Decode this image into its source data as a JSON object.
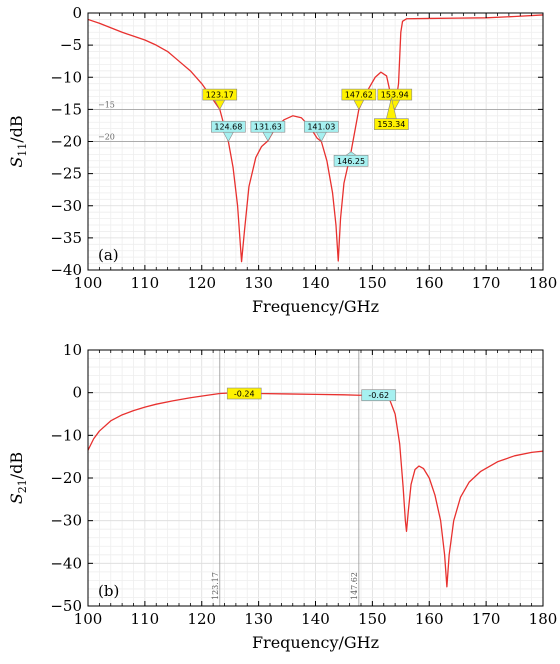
{
  "chart_data": [
    {
      "type": "line",
      "panel_label": "(a)",
      "xlabel": "Frequency/GHz",
      "ylabel": "S11/dB",
      "ylabel_main": "S",
      "ylabel_sub": "11",
      "ylabel_unit": "/dB",
      "xlim": [
        100,
        180
      ],
      "ylim": [
        -40,
        0
      ],
      "xticks": [
        100,
        110,
        120,
        130,
        140,
        150,
        160,
        170,
        180
      ],
      "yticks": [
        0,
        -5,
        -10,
        -15,
        -20,
        -25,
        -30,
        -35,
        -40
      ],
      "ytick_labels": [
        "0",
        "−5",
        "−10",
        "−15",
        "−20",
        "−25",
        "−30",
        "−35",
        "−40"
      ],
      "grid": true,
      "reference_lines": [
        {
          "axis": "y",
          "value": -15,
          "label": "−15"
        },
        {
          "axis": "y",
          "value": -20,
          "label": "−20"
        }
      ],
      "series": [
        {
          "color": "#e8312f",
          "points": [
            [
              100,
              -1.0
            ],
            [
              102,
              -1.6
            ],
            [
              104,
              -2.3
            ],
            [
              106,
              -3.0
            ],
            [
              108,
              -3.6
            ],
            [
              110,
              -4.2
            ],
            [
              112,
              -5.0
            ],
            [
              114,
              -6.0
            ],
            [
              116,
              -7.5
            ],
            [
              118,
              -9.0
            ],
            [
              120,
              -11.0
            ],
            [
              122,
              -13.5
            ],
            [
              123.17,
              -15.0
            ],
            [
              124.68,
              -20.0
            ],
            [
              125.5,
              -24.0
            ],
            [
              126.3,
              -30.0
            ],
            [
              127.0,
              -38.7
            ],
            [
              127.5,
              -34.0
            ],
            [
              128.3,
              -27.0
            ],
            [
              129.5,
              -22.5
            ],
            [
              130.5,
              -20.8
            ],
            [
              131.63,
              -19.9
            ],
            [
              133,
              -17.8
            ],
            [
              134.5,
              -16.6
            ],
            [
              136,
              -16.0
            ],
            [
              137.5,
              -16.3
            ],
            [
              139,
              -17.7
            ],
            [
              140.3,
              -19.5
            ],
            [
              141.03,
              -20.0
            ],
            [
              142,
              -23.0
            ],
            [
              143,
              -28.0
            ],
            [
              143.6,
              -33.0
            ],
            [
              144.0,
              -38.6
            ],
            [
              144.4,
              -32.0
            ],
            [
              145,
              -26.5
            ],
            [
              146.25,
              -21.6
            ],
            [
              147.62,
              -15.0
            ],
            [
              149,
              -12.3
            ],
            [
              150.5,
              -10.0
            ],
            [
              151.5,
              -9.2
            ],
            [
              152.5,
              -9.8
            ],
            [
              153.34,
              -13.2
            ],
            [
              153.94,
              -15.0
            ],
            [
              154.6,
              -11.0
            ],
            [
              155.0,
              -3.0
            ],
            [
              155.3,
              -1.3
            ],
            [
              156,
              -0.9
            ],
            [
              160,
              -0.85
            ],
            [
              165,
              -0.8
            ],
            [
              170,
              -0.75
            ],
            [
              175,
              -0.55
            ],
            [
              180,
              -0.3
            ]
          ]
        }
      ],
      "markers": [
        {
          "x": 123.17,
          "y": -15.0,
          "label": "123.17",
          "color": "#fff200",
          "box_dx": 0,
          "box_y": -12.7
        },
        {
          "x": 124.68,
          "y": -20.0,
          "label": "124.68",
          "color": "#a6f0f0",
          "box_dx": 0,
          "box_y": -17.7
        },
        {
          "x": 131.63,
          "y": -19.9,
          "label": "131.63",
          "color": "#a6f0f0",
          "box_dx": 0,
          "box_y": -17.7
        },
        {
          "x": 141.03,
          "y": -20.0,
          "label": "141.03",
          "color": "#a6f0f0",
          "box_dx": 0,
          "box_y": -17.7
        },
        {
          "x": 146.25,
          "y": -21.6,
          "label": "146.25",
          "color": "#a6f0f0",
          "box_dx": 0,
          "box_y": -23.0
        },
        {
          "x": 147.62,
          "y": -15.0,
          "label": "147.62",
          "color": "#fff200",
          "box_dx": 0,
          "box_y": -12.7
        },
        {
          "x": 153.94,
          "y": -15.0,
          "label": "153.94",
          "color": "#fff200",
          "box_dx": 0,
          "box_y": -12.7
        },
        {
          "x": 153.34,
          "y": -13.2,
          "label": "153.34",
          "color": "#fff200",
          "box_dx": 0,
          "box_y": -17.3
        }
      ]
    },
    {
      "type": "line",
      "panel_label": "(b)",
      "xlabel": "Frequency/GHz",
      "ylabel": "S21/dB",
      "ylabel_main": "S",
      "ylabel_sub": "21",
      "ylabel_unit": "/dB",
      "xlim": [
        100,
        180
      ],
      "ylim": [
        -50,
        10
      ],
      "xticks": [
        100,
        110,
        120,
        130,
        140,
        150,
        160,
        170,
        180
      ],
      "yticks": [
        10,
        0,
        -10,
        -20,
        -30,
        -40,
        -50
      ],
      "ytick_labels": [
        "10",
        "0",
        "−10",
        "−20",
        "−30",
        "−40",
        "−50"
      ],
      "grid": true,
      "reference_lines": [
        {
          "axis": "x",
          "value": 123.17,
          "label": "123.17"
        },
        {
          "axis": "x",
          "value": 147.62,
          "label": "147.62"
        }
      ],
      "series": [
        {
          "color": "#e8312f",
          "points": [
            [
              100,
              -13.5
            ],
            [
              101,
              -10.8
            ],
            [
              102,
              -9.0
            ],
            [
              104,
              -6.6
            ],
            [
              106,
              -5.2
            ],
            [
              108,
              -4.2
            ],
            [
              110,
              -3.4
            ],
            [
              112,
              -2.7
            ],
            [
              115,
              -1.9
            ],
            [
              118,
              -1.2
            ],
            [
              121,
              -0.6
            ],
            [
              123.17,
              -0.2
            ],
            [
              126,
              0.0
            ],
            [
              130,
              -0.2
            ],
            [
              135,
              -0.3
            ],
            [
              140,
              -0.4
            ],
            [
              145,
              -0.5
            ],
            [
              147.62,
              -0.6
            ],
            [
              150,
              -0.6
            ],
            [
              152,
              -0.7
            ],
            [
              153,
              -1.5
            ],
            [
              154,
              -5.0
            ],
            [
              154.8,
              -12.0
            ],
            [
              155.4,
              -22.0
            ],
            [
              155.8,
              -30.0
            ],
            [
              156.0,
              -32.5
            ],
            [
              156.3,
              -28.0
            ],
            [
              156.8,
              -21.5
            ],
            [
              157.5,
              -18.0
            ],
            [
              158.2,
              -17.2
            ],
            [
              159,
              -17.8
            ],
            [
              160,
              -20.0
            ],
            [
              161,
              -24.0
            ],
            [
              162,
              -30.0
            ],
            [
              162.7,
              -38.0
            ],
            [
              163.1,
              -45.5
            ],
            [
              163.5,
              -38.0
            ],
            [
              164.3,
              -30.0
            ],
            [
              165.5,
              -24.5
            ],
            [
              167,
              -21.0
            ],
            [
              169,
              -18.5
            ],
            [
              172,
              -16.2
            ],
            [
              175,
              -14.8
            ],
            [
              178,
              -14.0
            ],
            [
              180,
              -13.7
            ]
          ]
        }
      ],
      "markers": [
        {
          "x": 123.17,
          "y": -0.2,
          "label": "-0.24",
          "color": "#fff200",
          "box_dx": 4.3,
          "box_y": -0.2
        },
        {
          "x": 147.62,
          "y": -0.6,
          "label": "-0.62",
          "color": "#a6f0f0",
          "box_dx": 3.5,
          "box_y": -0.6
        }
      ]
    }
  ]
}
